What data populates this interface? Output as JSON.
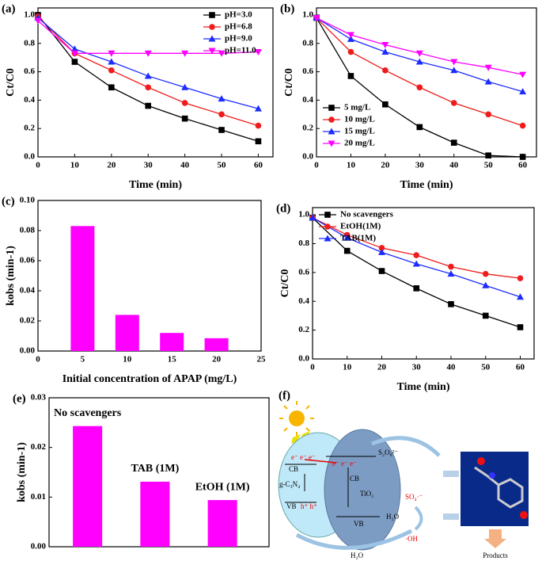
{
  "chart_data": [
    {
      "type": "line",
      "panel_label": "(a)",
      "x_label": "Time (min)",
      "y_label": "Ct/C0",
      "x": [
        0,
        10,
        20,
        30,
        40,
        50,
        60
      ],
      "xlim": [
        0,
        64
      ],
      "xticks": [
        0,
        10,
        20,
        30,
        40,
        50,
        60
      ],
      "ylim": [
        0,
        1.05
      ],
      "yticks": [
        {
          "value": 0,
          "label": "0.0"
        },
        0.2,
        0.4,
        0.6,
        0.8,
        {
          "value": 1,
          "label": "1.0"
        }
      ],
      "legend": "upper right",
      "series": [
        {
          "name": "pH=3.0",
          "color": "#000000",
          "marker": "square",
          "values": [
            1.0,
            0.67,
            0.49,
            0.36,
            0.27,
            0.19,
            0.11
          ]
        },
        {
          "name": "pH=6.8",
          "color": "#ee1c1c",
          "marker": "circle",
          "values": [
            0.99,
            0.73,
            0.61,
            0.49,
            0.38,
            0.3,
            0.22
          ]
        },
        {
          "name": "pH=9.0",
          "color": "#1c2cff",
          "marker": "triangle-up",
          "values": [
            0.98,
            0.76,
            0.67,
            0.57,
            0.49,
            0.41,
            0.34
          ]
        },
        {
          "name": "pH=11.0",
          "color": "#ff00ff",
          "marker": "triangle-down",
          "values": [
            0.96,
            0.73,
            0.73,
            0.73,
            0.73,
            0.73,
            0.74
          ]
        }
      ]
    },
    {
      "type": "line",
      "panel_label": "(b)",
      "x_label": "Time (min)",
      "y_label": "Ct/C0",
      "x": [
        0,
        10,
        20,
        30,
        40,
        50,
        60
      ],
      "xlim": [
        0,
        64
      ],
      "xticks": [
        0,
        10,
        20,
        30,
        40,
        50,
        60
      ],
      "ylim": [
        0,
        1.05
      ],
      "yticks": [
        {
          "value": 0,
          "label": "0.0"
        },
        0.2,
        0.4,
        0.6,
        0.8,
        {
          "value": 1,
          "label": "1.0"
        }
      ],
      "legend": "lower left",
      "series": [
        {
          "name": "5 mg/L",
          "color": "#000000",
          "marker": "square",
          "values": [
            0.98,
            0.57,
            0.37,
            0.21,
            0.1,
            0.01,
            0.0
          ]
        },
        {
          "name": "10 mg/L",
          "color": "#ee1c1c",
          "marker": "circle",
          "values": [
            0.98,
            0.74,
            0.61,
            0.49,
            0.38,
            0.3,
            0.22
          ]
        },
        {
          "name": "15 mg/L",
          "color": "#1c2cff",
          "marker": "triangle-up",
          "values": [
            0.98,
            0.83,
            0.74,
            0.67,
            0.61,
            0.53,
            0.46
          ]
        },
        {
          "name": "20 mg/L",
          "color": "#ff00ff",
          "marker": "triangle-down",
          "values": [
            0.98,
            0.86,
            0.79,
            0.73,
            0.67,
            0.63,
            0.58
          ]
        }
      ]
    },
    {
      "type": "bar",
      "panel_label": "(c)",
      "x_label": "Initial concentration of APAP (mg/L)",
      "y_label": "kobs (min-1)",
      "x": [
        5,
        10,
        15,
        20
      ],
      "values": [
        0.083,
        0.024,
        0.012,
        0.0085
      ],
      "color": "#ff00ff",
      "xlim": [
        0,
        25
      ],
      "xticks": [
        0,
        5,
        10,
        15,
        20,
        25
      ],
      "ylim": [
        0,
        0.1
      ],
      "yticks": [
        {
          "value": 0,
          "label": "0.00"
        },
        0.02,
        0.04,
        0.06,
        0.08,
        {
          "value": 0.1,
          "label": "0.10"
        }
      ]
    },
    {
      "type": "line",
      "panel_label": "(d)",
      "x_label": "Time (min)",
      "y_label": "Ct/C0",
      "x": [
        0,
        10,
        20,
        30,
        40,
        50,
        60
      ],
      "xlim": [
        0,
        64
      ],
      "xticks": [
        0,
        10,
        20,
        30,
        40,
        50,
        60
      ],
      "ylim": [
        0,
        1.05
      ],
      "yticks": [
        {
          "value": 0,
          "label": "0.0"
        },
        0.2,
        0.4,
        0.6,
        0.8,
        {
          "value": 1,
          "label": "1.0"
        }
      ],
      "legend": "upper left",
      "series": [
        {
          "name": "No scavengers",
          "color": "#000000",
          "marker": "square",
          "values": [
            0.98,
            0.75,
            0.61,
            0.49,
            0.38,
            0.3,
            0.22
          ]
        },
        {
          "name": "EtOH(1M)",
          "color": "#ee1c1c",
          "marker": "circle",
          "values": [
            0.98,
            0.86,
            0.77,
            0.72,
            0.64,
            0.59,
            0.56
          ]
        },
        {
          "name": "TAB(1M)",
          "color": "#1c2cff",
          "marker": "triangle-up",
          "values": [
            0.98,
            0.84,
            0.74,
            0.66,
            0.59,
            0.51,
            0.43
          ]
        }
      ]
    },
    {
      "type": "bar",
      "panel_label": "(e)",
      "y_label": "kobs (min-1)",
      "categories": [
        "No scavengers",
        "TAB (1M)",
        "EtOH (1M)"
      ],
      "values": [
        0.0243,
        0.0131,
        0.0094
      ],
      "color": "#ff00ff",
      "ylim": [
        0,
        0.03
      ],
      "yticks": [
        {
          "value": 0,
          "label": "0.00"
        },
        0.01,
        0.02,
        0.03
      ]
    }
  ],
  "diagram": {
    "panel_label": "(f)",
    "persulfate": "S₂O₈²⁻",
    "sulfate_radical": "SO₄·⁻",
    "water_mid": "H₂O",
    "hydroxyl_radical": "·OH",
    "water_bottom": "H₂O",
    "products": "Products",
    "gcn_cb": "CB",
    "gcn_vb": "VB",
    "gcn_name": "g-C₃N₄",
    "gcn_electrons": "e⁻ e⁻ e⁻",
    "gcn_holes": "h⁺ h⁺",
    "tio2_cb": "CB",
    "tio2_vb": "VB",
    "tio2_name": "TiO₂",
    "tio2_electrons": "e⁻ e⁻ e⁻"
  }
}
